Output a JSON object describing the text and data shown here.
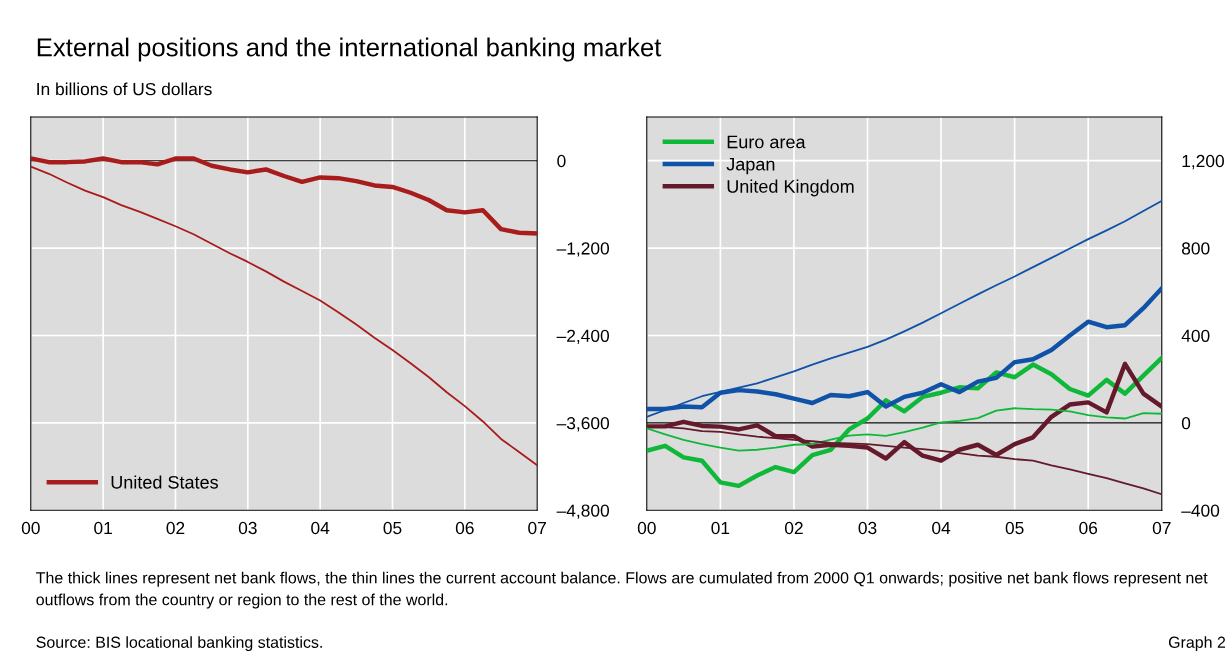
{
  "chart_data": [
    {
      "type": "line",
      "title": "External positions and the international banking market",
      "subtitle": "In billions of US dollars",
      "annotations": [
        "The thick lines represent net bank flows, the thin lines the current account balance. Flows are cumulated from 2000 Q1 onwards; positive net bank flows represent net outflows from the country or region to the rest of the world.",
        "Source: BIS locational banking statistics.",
        "Graph 2"
      ],
      "x": [
        0,
        0.25,
        0.5,
        0.75,
        1,
        1.25,
        1.5,
        1.75,
        2,
        2.25,
        2.5,
        2.75,
        3,
        3.25,
        3.5,
        3.75,
        4,
        4.25,
        4.5,
        4.75,
        5,
        5.25,
        5.5,
        5.75,
        6,
        6.25,
        6.5,
        6.75,
        7
      ],
      "series": [
        {
          "name": "United States",
          "color": "#a81c1c",
          "values": [
            30,
            -20,
            -20,
            -10,
            30,
            -20,
            -20,
            -50,
            30,
            30,
            -70,
            -120,
            -160,
            -120,
            -210,
            -290,
            -230,
            -240,
            -280,
            -340,
            -360,
            -440,
            -540,
            -680,
            -710,
            -680,
            -940,
            -990,
            -1000
          ]
        },
        {
          "color": "#a81c1c",
          "values": [
            -80,
            -180,
            -300,
            -410,
            -500,
            -610,
            -700,
            -800,
            -900,
            -1010,
            -1140,
            -1270,
            -1390,
            -1520,
            -1660,
            -1790,
            -1920,
            -2080,
            -2250,
            -2430,
            -2600,
            -2780,
            -2970,
            -3180,
            -3370,
            -3580,
            -3820,
            -4000,
            -4180
          ]
        }
      ],
      "xlim": [
        0,
        7
      ],
      "xticks": [
        {
          "value": 0,
          "label": "00"
        },
        {
          "value": 1,
          "label": "01"
        },
        {
          "value": 2,
          "label": "02"
        },
        {
          "value": 3,
          "label": "03"
        },
        {
          "value": 4,
          "label": "04"
        },
        {
          "value": 5,
          "label": "05"
        },
        {
          "value": 6,
          "label": "06"
        },
        {
          "value": 7,
          "label": "07"
        }
      ],
      "ylim": [
        -4800,
        600
      ],
      "yticks": [
        {
          "value": -4800,
          "label": "–4,800"
        },
        {
          "value": -3600,
          "label": "–3,600"
        },
        {
          "value": -2400,
          "label": "–2,400"
        },
        {
          "value": -1200,
          "label": "–1,200"
        },
        0
      ],
      "ref_lines": [
        {
          "axis": "y",
          "value": 0,
          "color": "#000000"
        }
      ],
      "grid": true,
      "legend": "bottom left"
    },
    {
      "type": "line",
      "x": [
        0,
        0.25,
        0.5,
        0.75,
        1,
        1.25,
        1.5,
        1.75,
        2,
        2.25,
        2.5,
        2.75,
        3,
        3.25,
        3.5,
        3.75,
        4,
        4.25,
        4.5,
        4.75,
        5,
        5.25,
        5.5,
        5.75,
        6,
        6.25,
        6.5,
        6.75,
        7
      ],
      "series": [
        {
          "name": "Euro area",
          "color": "#10b83a",
          "values": [
            -127,
            -105,
            -158,
            -173,
            -272,
            -288,
            -241,
            -202,
            -225,
            -147,
            -123,
            -30,
            20,
            103,
            53,
            119,
            138,
            163,
            158,
            231,
            209,
            267,
            223,
            155,
            125,
            197,
            134,
            216,
            298
          ]
        },
        {
          "name": "Japan",
          "color": "#0f52a8",
          "values": [
            64,
            64,
            75,
            72,
            138,
            150,
            144,
            131,
            111,
            91,
            128,
            122,
            141,
            75,
            119,
            138,
            177,
            141,
            189,
            206,
            278,
            291,
            334,
            400,
            463,
            438,
            447,
            525,
            616
          ]
        },
        {
          "name": "United Kingdom",
          "color": "#651a2c",
          "values": [
            -16,
            -16,
            5,
            -14,
            -17,
            -30,
            -11,
            -61,
            -61,
            -108,
            -100,
            -105,
            -113,
            -163,
            -88,
            -150,
            -173,
            -123,
            -100,
            -147,
            -97,
            -66,
            28,
            84,
            94,
            48,
            270,
            134,
            75
          ]
        },
        {
          "color": "#10b83a",
          "values": [
            -25,
            -53,
            -78,
            -97,
            -113,
            -127,
            -123,
            -113,
            -100,
            -97,
            -77,
            -58,
            -53,
            -59,
            -42,
            -22,
            2,
            9,
            22,
            56,
            67,
            63,
            61,
            53,
            36,
            25,
            20,
            45,
            42
          ]
        },
        {
          "color": "#0f52a8",
          "values": [
            28,
            59,
            91,
            122,
            142,
            161,
            181,
            208,
            236,
            267,
            295,
            322,
            348,
            381,
            419,
            459,
            502,
            545,
            588,
            630,
            670,
            713,
            755,
            798,
            841,
            881,
            923,
            970,
            1016
          ]
        },
        {
          "color": "#651a2c",
          "values": [
            -16,
            -19,
            -25,
            -38,
            -41,
            -53,
            -63,
            -70,
            -78,
            -84,
            -92,
            -94,
            -97,
            -105,
            -113,
            -120,
            -128,
            -138,
            -150,
            -155,
            -166,
            -173,
            -194,
            -213,
            -233,
            -253,
            -277,
            -300,
            -327
          ]
        }
      ],
      "xlim": [
        0,
        7
      ],
      "xticks": [
        {
          "value": 0,
          "label": "00"
        },
        {
          "value": 1,
          "label": "01"
        },
        {
          "value": 2,
          "label": "02"
        },
        {
          "value": 3,
          "label": "03"
        },
        {
          "value": 4,
          "label": "04"
        },
        {
          "value": 5,
          "label": "05"
        },
        {
          "value": 6,
          "label": "06"
        },
        {
          "value": 7,
          "label": "07"
        }
      ],
      "ylim": [
        -400,
        1400
      ],
      "yticks": [
        {
          "value": -400,
          "label": "–400"
        },
        0,
        400,
        800,
        {
          "value": 1200,
          "label": "1,200"
        }
      ],
      "ref_lines": [
        {
          "axis": "y",
          "value": 0,
          "color": "#000000"
        }
      ],
      "grid": true,
      "legend": "top left"
    }
  ]
}
